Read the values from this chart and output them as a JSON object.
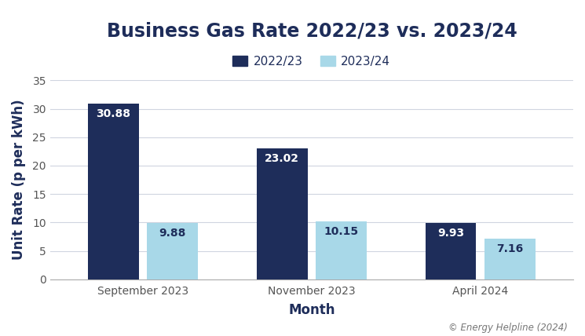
{
  "title": "Business Gas Rate 2022/23 vs. 2023/24",
  "xlabel": "Month",
  "ylabel": "Unit Rate (p per kWh)",
  "categories": [
    "September 2023",
    "November 2023",
    "April 2024"
  ],
  "series": [
    {
      "label": "2022/23",
      "values": [
        30.88,
        23.02,
        9.93
      ],
      "color": "#1e2d5a"
    },
    {
      "label": "2023/24",
      "values": [
        9.88,
        10.15,
        7.16
      ],
      "color": "#a8d8e8"
    }
  ],
  "ylim": [
    0,
    35
  ],
  "yticks": [
    0,
    5,
    10,
    15,
    20,
    25,
    30,
    35
  ],
  "bar_width": 0.3,
  "background_color": "#ffffff",
  "grid_color": "#d0d5e0",
  "title_color": "#1e2d5a",
  "label_color": "#1e2d5a",
  "tick_color": "#555555",
  "value_label_color_dark": "#ffffff",
  "value_label_color_light": "#1e2d5a",
  "footnote": "© Energy Helpline (2024)",
  "title_fontsize": 17,
  "axis_label_fontsize": 12,
  "tick_fontsize": 10,
  "legend_fontsize": 11,
  "value_fontsize": 10
}
